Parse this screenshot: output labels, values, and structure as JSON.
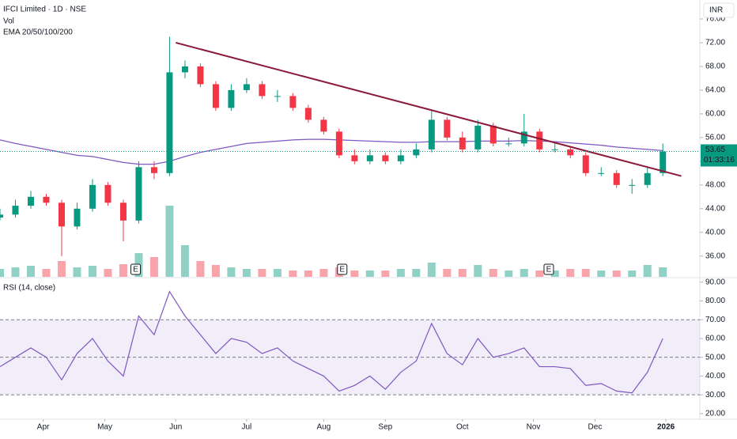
{
  "chart_data": [
    {
      "type": "candlestick",
      "title": "IFCI Limited · 1D · NSE",
      "volume_label": "Vol",
      "indicator_label": "EMA 20/50/100/200",
      "currency": "INR",
      "last_price": 53.65,
      "countdown": "01:33:16",
      "up_color": "#089981",
      "down_color": "#f23645",
      "x": [
        0,
        5,
        10,
        15,
        20,
        25,
        30,
        35,
        40,
        45,
        50,
        55,
        60,
        65,
        70,
        75,
        80,
        85,
        90,
        95,
        100,
        105,
        110,
        115,
        120,
        125,
        130,
        135,
        140,
        145,
        150,
        155,
        160,
        165,
        170,
        175,
        180,
        185,
        190,
        195,
        200,
        205,
        210,
        215
      ],
      "open": [
        42.5,
        43,
        44.5,
        46,
        45,
        41,
        44,
        48,
        45,
        42,
        51,
        50,
        67,
        68,
        65,
        61,
        64,
        65,
        63,
        63,
        61,
        59,
        57,
        53,
        52,
        53,
        52,
        53,
        54,
        59,
        56,
        54,
        58,
        55,
        55,
        57,
        54,
        54,
        53,
        50,
        50,
        48,
        48,
        50
      ],
      "high": [
        44,
        45.5,
        47,
        46.5,
        45.5,
        45,
        49,
        48.5,
        45.5,
        52,
        52,
        73,
        69,
        68.5,
        65.5,
        65,
        66,
        65.5,
        64,
        63.5,
        61.5,
        59.5,
        57.5,
        54,
        54,
        53.5,
        54,
        55,
        60.5,
        59.5,
        57,
        59,
        58.5,
        56,
        60,
        57.5,
        55,
        54.5,
        53.5,
        51,
        50.5,
        49,
        51,
        55
      ],
      "low": [
        42,
        42.5,
        44,
        44.5,
        36,
        40.5,
        43.5,
        44.5,
        38.5,
        41.5,
        49,
        49.5,
        66,
        64.5,
        60.5,
        60.5,
        63.5,
        62.5,
        62,
        60.5,
        58.5,
        56.5,
        52.5,
        51.5,
        51.5,
        51.5,
        51.5,
        52.5,
        53.5,
        55.5,
        53.5,
        53.5,
        54.5,
        54.5,
        54.5,
        53.5,
        53.5,
        52.5,
        49.5,
        49.5,
        47.5,
        46.5,
        47.5,
        49.5
      ],
      "close": [
        43,
        44.5,
        46,
        45,
        41,
        44,
        48,
        45,
        42,
        51,
        50,
        67,
        68,
        65,
        61,
        64,
        65,
        63,
        63,
        61,
        59,
        57,
        53,
        52,
        53,
        52,
        53,
        54,
        59,
        56,
        54,
        58,
        55,
        55,
        57,
        54,
        54,
        53,
        50,
        50,
        48,
        48,
        50,
        53.65
      ],
      "volume": [
        10,
        12,
        14,
        10,
        20,
        12,
        14,
        10,
        16,
        30,
        25,
        90,
        40,
        20,
        15,
        12,
        10,
        10,
        10,
        8,
        8,
        10,
        12,
        8,
        8,
        8,
        10,
        10,
        18,
        10,
        10,
        15,
        10,
        8,
        10,
        8,
        8,
        10,
        10,
        8,
        8,
        8,
        15,
        12
      ],
      "series": [
        {
          "name": "EMA 200",
          "color": "#7e57c2",
          "values": [
            55.6,
            55,
            54.5,
            54,
            53.5,
            53,
            52.8,
            52.3,
            51.8,
            51.5,
            51.5,
            52,
            52.8,
            53.5,
            54,
            54.5,
            55,
            55.2,
            55.4,
            55.6,
            55.7,
            55.7,
            55.6,
            55.5,
            55.4,
            55.3,
            55.2,
            55.2,
            55.3,
            55.3,
            55.3,
            55.4,
            55.4,
            55.4,
            55.5,
            55.4,
            55.3,
            55.1,
            54.9,
            54.7,
            54.4,
            54.2,
            54,
            53.8
          ]
        }
      ],
      "trendline": {
        "color": "#8b1a3a",
        "x": [
          57,
          221
        ],
        "y": [
          72,
          49.5
        ]
      },
      "events": {
        "labels": [
          "E",
          "E",
          "E"
        ],
        "x": [
          44,
          111,
          178
        ]
      },
      "xlim": [
        0,
        227
      ],
      "xticks": [
        {
          "value": 14,
          "label": "Apr"
        },
        {
          "value": 34,
          "label": "May"
        },
        {
          "value": 57,
          "label": "Jun"
        },
        {
          "value": 80,
          "label": "Jul"
        },
        {
          "value": 105,
          "label": "Aug"
        },
        {
          "value": 125,
          "label": "Sep"
        },
        {
          "value": 150,
          "label": "Oct"
        },
        {
          "value": 173,
          "label": "Nov"
        },
        {
          "value": 193,
          "label": "Dec"
        },
        {
          "value": 216,
          "label": "2026"
        }
      ],
      "ylim": [
        32.5,
        79.2
      ],
      "yticks": [
        {
          "value": 36,
          "label": "36.00"
        },
        {
          "value": 40,
          "label": "40.00"
        },
        {
          "value": 44,
          "label": "44.00"
        },
        {
          "value": 48,
          "label": "48.00"
        },
        {
          "value": 52,
          "label": "52.00"
        },
        {
          "value": 56,
          "label": "56.00"
        },
        {
          "value": 60,
          "label": "60.00"
        },
        {
          "value": 64,
          "label": "64.00"
        },
        {
          "value": 68,
          "label": "68.00"
        },
        {
          "value": 72,
          "label": "72.00"
        },
        {
          "value": 76,
          "label": "76.00"
        }
      ]
    },
    {
      "type": "line",
      "title": "RSI (14, close)",
      "x": [
        0,
        5,
        10,
        15,
        20,
        25,
        30,
        35,
        40,
        45,
        50,
        55,
        60,
        65,
        70,
        75,
        80,
        85,
        90,
        95,
        100,
        105,
        110,
        115,
        120,
        125,
        130,
        135,
        140,
        145,
        150,
        155,
        160,
        165,
        170,
        175,
        180,
        185,
        190,
        195,
        200,
        205,
        210,
        215
      ],
      "series": [
        {
          "name": "RSI",
          "color": "#7e57c2",
          "values": [
            45,
            50,
            55,
            50,
            38,
            52,
            60,
            48,
            40,
            72,
            62,
            85,
            72,
            62,
            52,
            60,
            58,
            52,
            55,
            48,
            44,
            40,
            32,
            35,
            40,
            33,
            42,
            48,
            68,
            52,
            46,
            60,
            50,
            52,
            55,
            45,
            45,
            44,
            35,
            36,
            32,
            31,
            42,
            60
          ]
        }
      ],
      "band": [
        30,
        70
      ],
      "midline": 50,
      "xlim": [
        0,
        227
      ],
      "ylim": [
        17,
        92
      ],
      "yticks": [
        {
          "value": 20,
          "label": "20.00"
        },
        {
          "value": 30,
          "label": "30.00"
        },
        {
          "value": 40,
          "label": "40.00"
        },
        {
          "value": 50,
          "label": "50.00"
        },
        {
          "value": 60,
          "label": "60.00"
        },
        {
          "value": 70,
          "label": "70.00"
        },
        {
          "value": 80,
          "label": "80.00"
        },
        {
          "value": 90,
          "label": "90.00"
        }
      ]
    }
  ]
}
